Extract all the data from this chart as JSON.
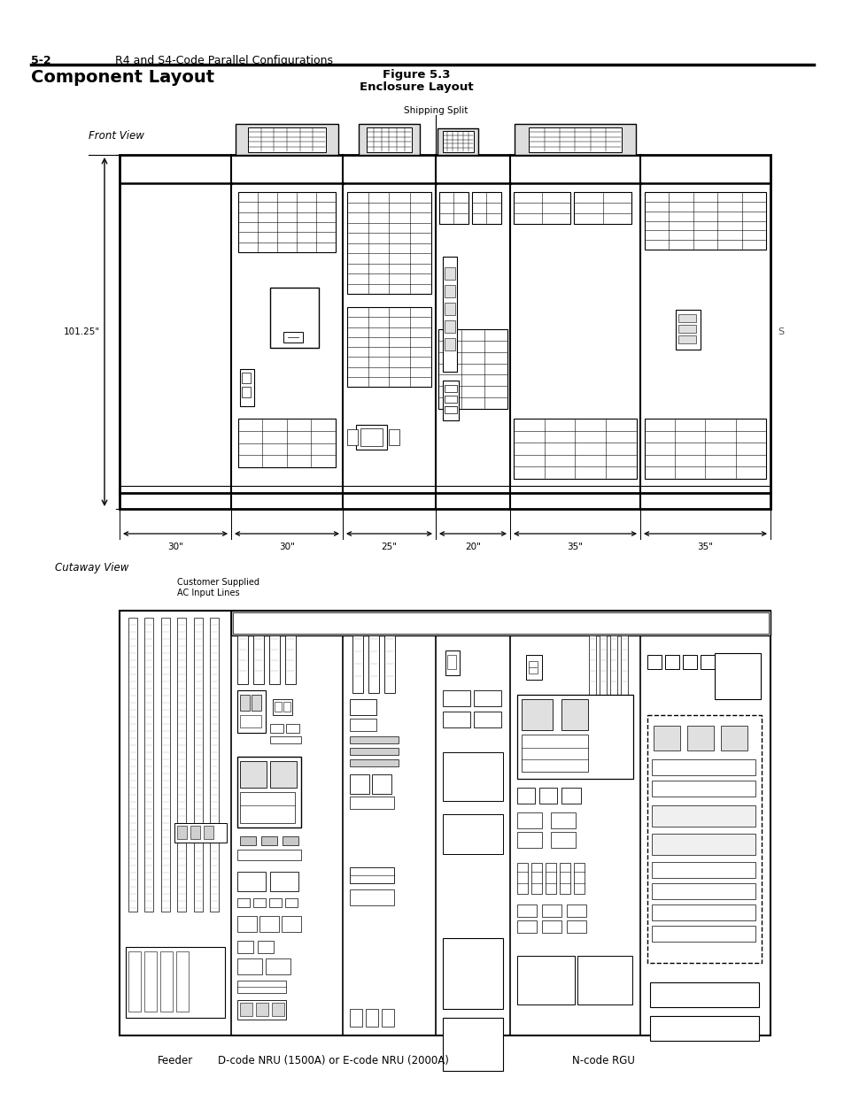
{
  "page_header_num": "5-2",
  "page_header_text": "R4 and S4-Code Parallel Configurations",
  "title_left": "Component Layout",
  "figure_label": "Figure 5.3",
  "figure_title": "Enclosure Layout",
  "front_view_label": "Front View",
  "cutaway_view_label": "Cutaway View",
  "shipping_split_label": "Shipping Split",
  "height_label": "101.25\"",
  "dim_labels": [
    "30\"",
    "30\"",
    "25\"",
    "20\"",
    "35\"",
    "35\""
  ],
  "col_widths_in": [
    30,
    30,
    25,
    20,
    35,
    35
  ],
  "feeder_label": "Feeder",
  "nru_label": "D-code NRU (1500A) or E-code NRU (2000A)",
  "rgu_label": "N-code RGU",
  "bg": "#ffffff",
  "line_color": "#000000"
}
